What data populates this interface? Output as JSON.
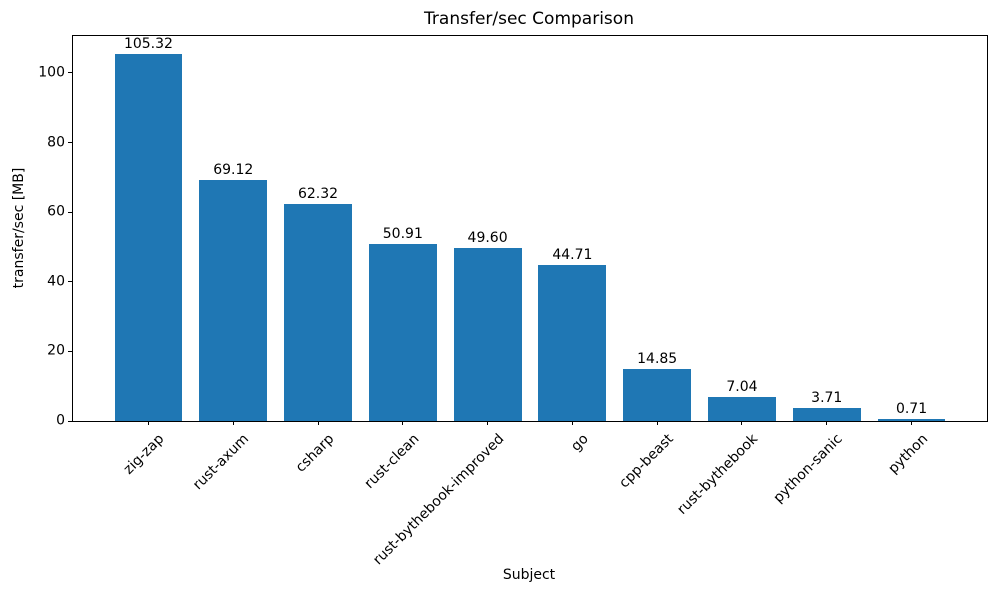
{
  "figure": {
    "background": "#ffffff",
    "text_color": "#000000"
  },
  "chart_data": {
    "type": "bar",
    "title": "Transfer/sec Comparison",
    "xlabel": "Subject",
    "ylabel": "transfer/sec [MB]",
    "categories": [
      "zig-zap",
      "rust-axum",
      "csharp",
      "rust-clean",
      "rust-bythebook-improved",
      "go",
      "cpp-beast",
      "rust-bythebook",
      "python-sanic",
      "python"
    ],
    "values": [
      105.32,
      69.12,
      62.32,
      50.91,
      49.6,
      44.71,
      14.85,
      7.04,
      3.71,
      0.71
    ],
    "value_labels": [
      "105.32",
      "69.12",
      "62.32",
      "50.91",
      "49.60",
      "44.71",
      "14.85",
      "7.04",
      "3.71",
      "0.71"
    ],
    "yticks": [
      0,
      20,
      40,
      60,
      80,
      100
    ],
    "ylim": [
      0,
      110.6
    ],
    "xlim": [
      -0.89,
      9.89
    ],
    "bar_width": 0.8,
    "bar_color": "#1f77b4",
    "grid": false,
    "legend": null,
    "x_tick_rotation_deg": 45
  }
}
